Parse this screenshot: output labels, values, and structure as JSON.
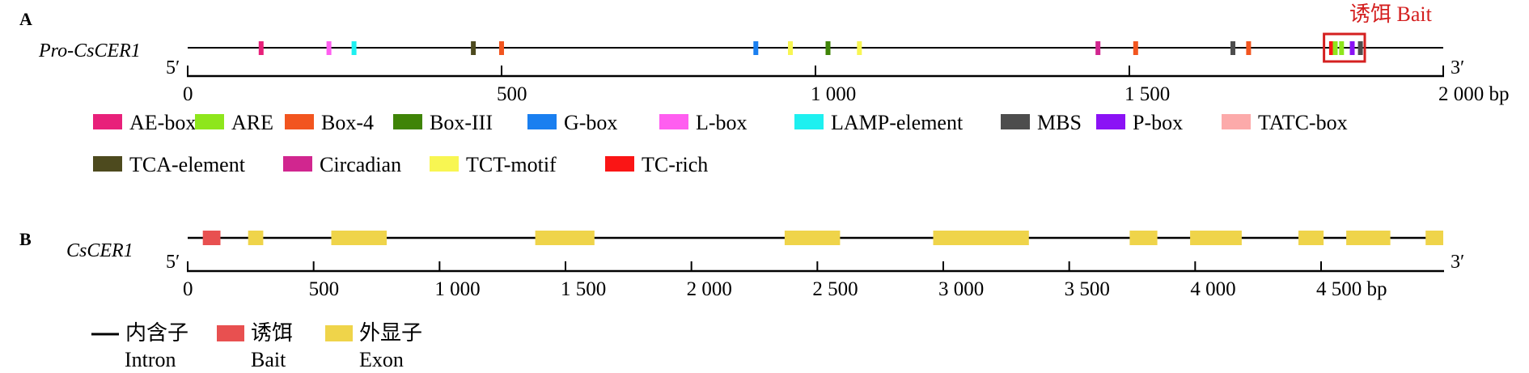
{
  "panel_a": {
    "letter": "A",
    "gene_label": "Pro-CsCER1",
    "five_prime": "5′",
    "three_prime": "3′",
    "axis_max": 2000,
    "axis_ticks": [
      {
        "value": 0,
        "label": "0"
      },
      {
        "value": 500,
        "label": "500"
      },
      {
        "value": 1000,
        "label": "1 000"
      },
      {
        "value": 1500,
        "label": "1 500"
      },
      {
        "value": 2000,
        "label": "2 000 bp"
      }
    ],
    "bait_label": "诱饵 Bait",
    "bait_region": [
      1810,
      1875
    ],
    "elements": [
      {
        "pos": 117,
        "type": "AE-box"
      },
      {
        "pos": 225,
        "type": "L-box"
      },
      {
        "pos": 265,
        "type": "LAMP-element"
      },
      {
        "pos": 455,
        "type": "TCA-element"
      },
      {
        "pos": 500,
        "type": "Box-4"
      },
      {
        "pos": 905,
        "type": "G-box"
      },
      {
        "pos": 960,
        "type": "TCT-motif"
      },
      {
        "pos": 1020,
        "type": "Box-III"
      },
      {
        "pos": 1070,
        "type": "TCT-motif"
      },
      {
        "pos": 1450,
        "type": "Circadian"
      },
      {
        "pos": 1510,
        "type": "Box-4"
      },
      {
        "pos": 1665,
        "type": "MBS"
      },
      {
        "pos": 1690,
        "type": "Box-4"
      },
      {
        "pos": 1822,
        "type": "TC-rich"
      },
      {
        "pos": 1828,
        "type": "ARE"
      },
      {
        "pos": 1838,
        "type": "ARE"
      },
      {
        "pos": 1855,
        "type": "P-box"
      },
      {
        "pos": 1868,
        "type": "MBS"
      }
    ],
    "legend": [
      {
        "name": "AE-box",
        "color": "#e8207a"
      },
      {
        "name": "ARE",
        "color": "#8ee61c"
      },
      {
        "name": "Box-4",
        "color": "#f2551f"
      },
      {
        "name": "Box-III",
        "color": "#3f8407"
      },
      {
        "name": "G-box",
        "color": "#1a7ff0"
      },
      {
        "name": "L-box",
        "color": "#ff5ef0"
      },
      {
        "name": "LAMP-element",
        "color": "#1ef0f0"
      },
      {
        "name": "MBS",
        "color": "#4d4d4d"
      },
      {
        "name": "P-box",
        "color": "#8b12f5"
      },
      {
        "name": "TATC-box",
        "color": "#fcaaaa"
      },
      {
        "name": "TCA-element",
        "color": "#4d4a1e"
      },
      {
        "name": "Circadian",
        "color": "#d1268f"
      },
      {
        "name": "TCT-motif",
        "color": "#f8f652"
      },
      {
        "name": "TC-rich",
        "color": "#fa1515"
      }
    ]
  },
  "panel_b": {
    "letter": "B",
    "gene_label": "CsCER1",
    "five_prime": "5′",
    "three_prime": "3′",
    "axis_max": 4985,
    "axis_ticks": [
      {
        "value": 0,
        "label": "0"
      },
      {
        "value": 500,
        "label": "500"
      },
      {
        "value": 1000,
        "label": "1 000"
      },
      {
        "value": 1500,
        "label": "1 500"
      },
      {
        "value": 2000,
        "label": "2 000"
      },
      {
        "value": 2500,
        "label": "2 500"
      },
      {
        "value": 3000,
        "label": "3 000"
      },
      {
        "value": 3500,
        "label": "3 500"
      },
      {
        "value": 4000,
        "label": "4 000"
      },
      {
        "value": 4500,
        "label": "4 500 bp"
      }
    ],
    "bait": [
      60,
      130
    ],
    "exons": [
      [
        240,
        300
      ],
      [
        570,
        790
      ],
      [
        1380,
        1615
      ],
      [
        2370,
        2590
      ],
      [
        2960,
        3340
      ],
      [
        3740,
        3850
      ],
      [
        3980,
        4185
      ],
      [
        4410,
        4510
      ],
      [
        4600,
        4775
      ],
      [
        4915,
        5095
      ]
    ],
    "legend": [
      {
        "name_zh": "内含子",
        "name_en": "Intron",
        "kind": "line",
        "color": "#000000"
      },
      {
        "name_zh": "诱饵",
        "name_en": "Bait",
        "kind": "box",
        "color": "#e85050"
      },
      {
        "name_zh": "外显子",
        "name_en": "Exon",
        "kind": "box",
        "color": "#efd44a"
      }
    ]
  }
}
